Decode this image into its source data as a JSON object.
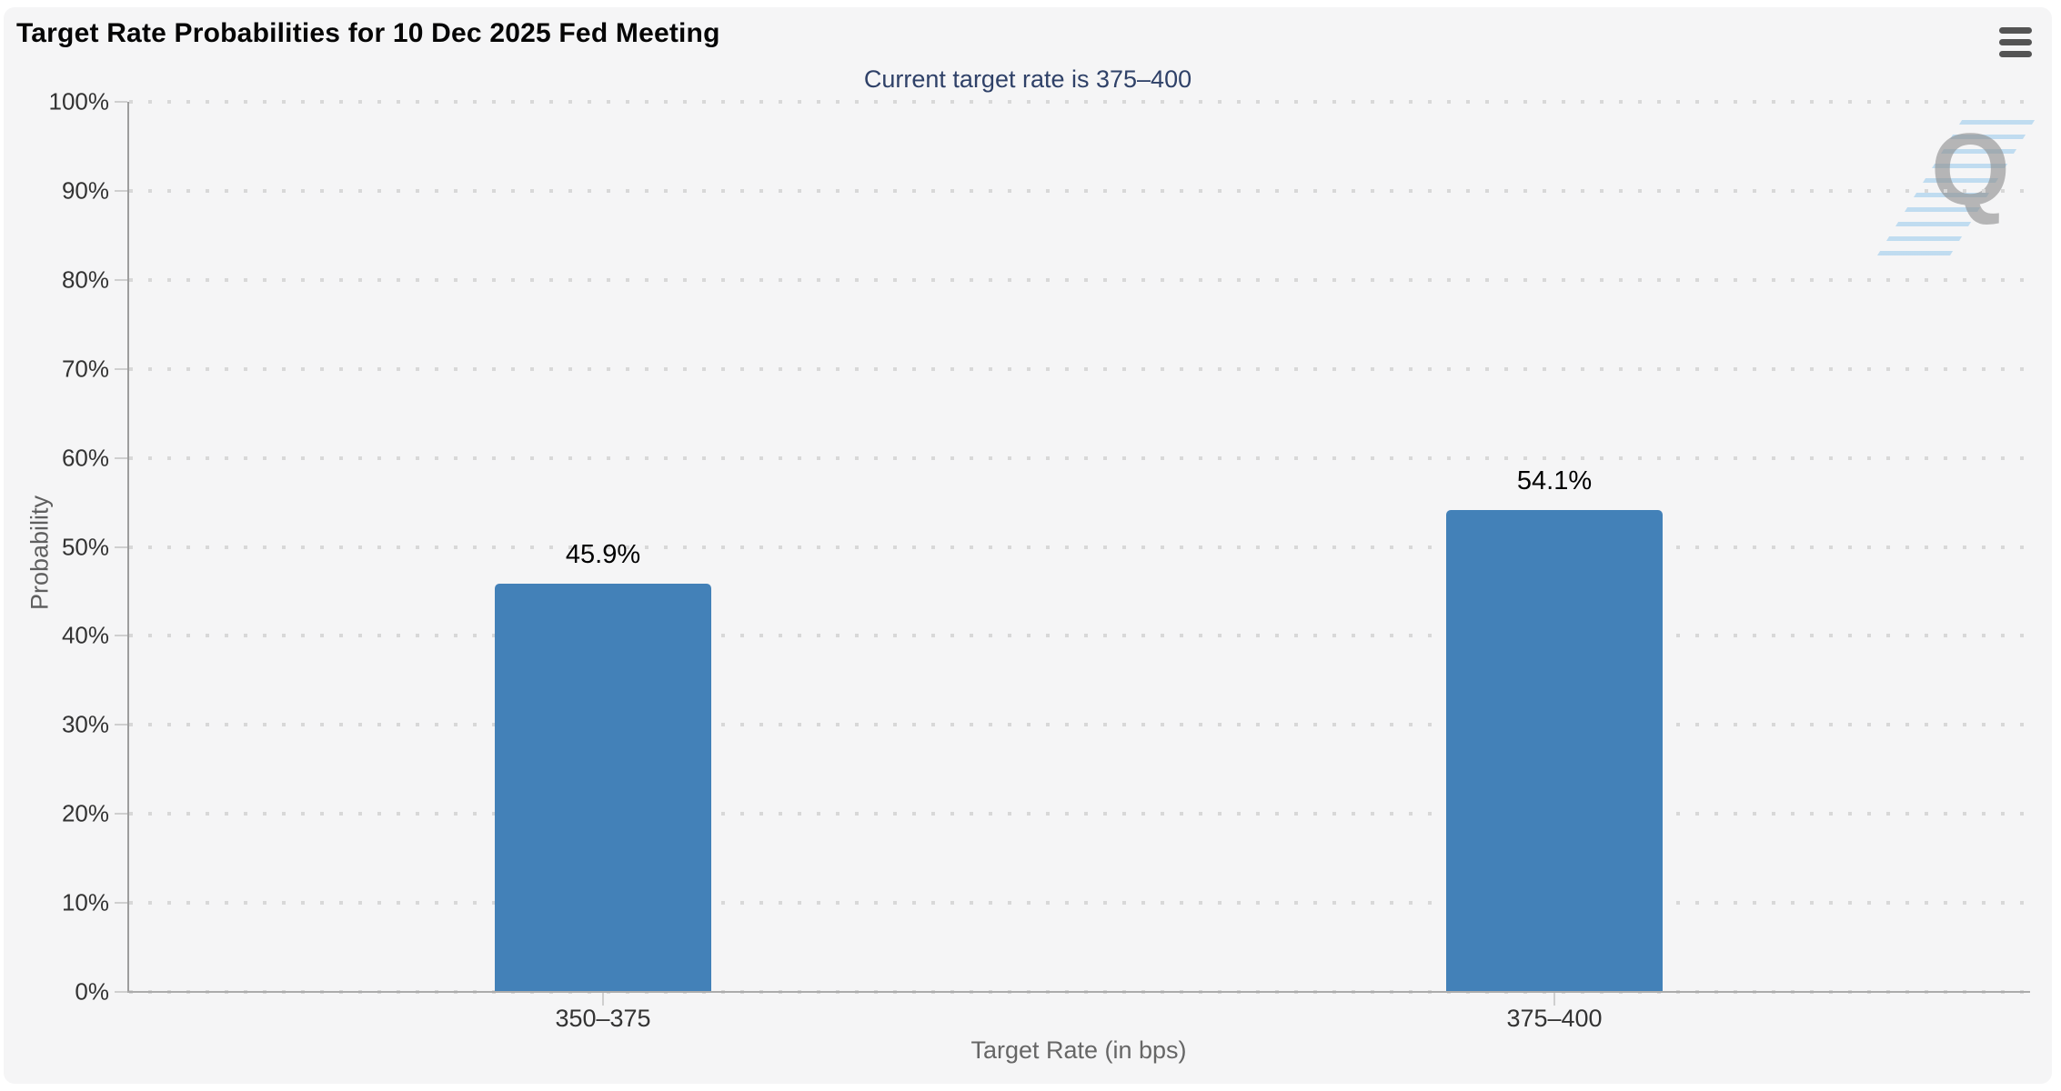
{
  "header": {
    "title": "Target Rate Probabilities for 10 Dec 2025 Fed Meeting",
    "menu_button": "chart context menu"
  },
  "chart_data": {
    "type": "bar",
    "title": "Target Rate Probabilities for 10 Dec 2025 Fed Meeting",
    "subtitle": "Current target rate is 375–400",
    "categories": [
      "350–375",
      "375–400"
    ],
    "values": [
      45.9,
      54.1
    ],
    "value_labels": [
      "45.9%",
      "54.1%"
    ],
    "xlabel": "Target Rate (in bps)",
    "ylabel": "Probability",
    "ylim": [
      0,
      100
    ],
    "y_tick_step": 10,
    "y_tick_labels": [
      "0%",
      "10%",
      "20%",
      "30%",
      "40%",
      "50%",
      "60%",
      "70%",
      "80%",
      "90%",
      "100%"
    ],
    "grid": "dotted horizontal gridlines",
    "legend": "none",
    "colors": {
      "bar": "#4381b8",
      "subtitle_text": "#2f4168",
      "plot_background": "#f5f5f6",
      "gridline": "#d8d8d8",
      "axis_line": "#9d9d9d",
      "tick_label": "#333333",
      "axis_title": "#666666",
      "data_label": "#000000"
    }
  },
  "watermark": {
    "letter": "Q",
    "name": "QuikStrike logo watermark"
  }
}
